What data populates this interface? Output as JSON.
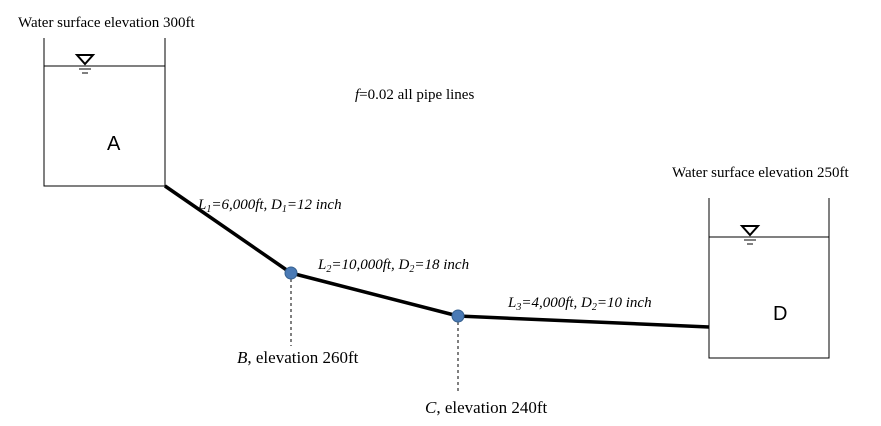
{
  "reservoirs": [
    {
      "elevation_label": "Water surface elevation 300ft",
      "name": "A"
    },
    {
      "elevation_label": "Water surface elevation 250ft",
      "name": "D"
    }
  ],
  "note": {
    "symbol": "f",
    "text": "=0.02 all pipe lines"
  },
  "pipes": [
    {
      "parts": [
        "L",
        "1",
        "=6,000ft, D",
        "1",
        "=12 inch"
      ]
    },
    {
      "parts": [
        "L",
        "2",
        "=10,000ft, D",
        "2",
        "=18 inch"
      ]
    },
    {
      "parts": [
        "L",
        "3",
        "=4,000ft, D",
        "2",
        "=10 inch"
      ]
    }
  ],
  "junctions": [
    {
      "name": "B",
      "text": ", elevation 260ft"
    },
    {
      "name": "C",
      "text": ", elevation 240ft"
    }
  ]
}
